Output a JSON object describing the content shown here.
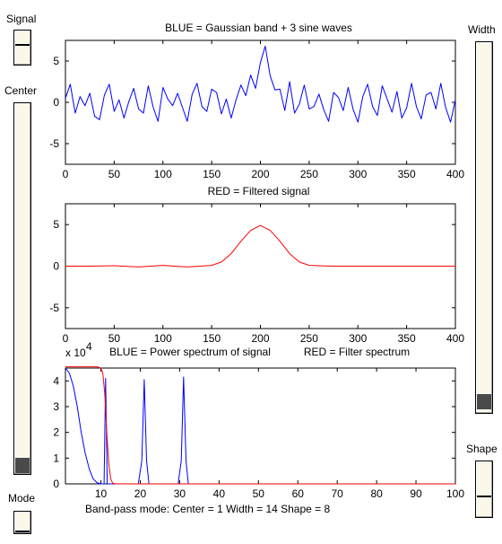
{
  "controls": {
    "signal_label": "Signal",
    "center_label": "Center",
    "mode_label": "Mode",
    "width_label": "Width",
    "shape_label": "Shape"
  },
  "sliders": {
    "signal_value": 0.5,
    "center_value": 0.0,
    "mode_value": 0.0,
    "width_value": 0.04,
    "shape_value": 0.5
  },
  "status_line": "Band-pass mode:   Center = 1    Width = 14    Shape =  8",
  "colors": {
    "signal": "#0000ff",
    "filter": "#ff0000",
    "slider_bg": "#fbf7e9",
    "thumb": "#4a4a4a"
  },
  "chart_data": [
    {
      "type": "line",
      "title": "BLUE = Gaussian band + 3 sine waves",
      "xlim": [
        0,
        400
      ],
      "ylim": [
        -7.5,
        7.5
      ],
      "xticks": [
        "0",
        "50",
        "100",
        "150",
        "200",
        "250",
        "300",
        "350",
        "400"
      ],
      "yticks": [
        "5",
        "0",
        "-5"
      ],
      "series": [
        {
          "color": "#0000ff",
          "x": [
            0,
            5,
            10,
            15,
            20,
            25,
            30,
            35,
            40,
            45,
            50,
            55,
            60,
            65,
            70,
            75,
            80,
            85,
            90,
            95,
            100,
            105,
            110,
            115,
            120,
            125,
            130,
            135,
            140,
            145,
            150,
            155,
            160,
            165,
            170,
            175,
            180,
            185,
            190,
            195,
            200,
            205,
            210,
            215,
            220,
            225,
            230,
            235,
            240,
            245,
            250,
            255,
            260,
            265,
            270,
            275,
            280,
            285,
            290,
            295,
            300,
            305,
            310,
            315,
            320,
            325,
            330,
            335,
            340,
            345,
            350,
            355,
            360,
            365,
            370,
            375,
            380,
            385,
            390,
            395,
            400
          ],
          "y": [
            0.5,
            2.2,
            -1.3,
            0.7,
            -0.4,
            1.1,
            -1.7,
            -2.1,
            0.9,
            2.2,
            -1.1,
            0.3,
            -1.9,
            0.1,
            1.7,
            -0.8,
            -1.3,
            2.0,
            -0.6,
            -2.3,
            1.8,
            0.4,
            -0.4,
            1.1,
            -0.6,
            -2.3,
            1.0,
            2.3,
            -0.5,
            -1.1,
            1.6,
            1.2,
            -1.4,
            0.4,
            -1.9,
            0.3,
            2.1,
            0.8,
            3.3,
            1.7,
            4.8,
            6.8,
            3.2,
            1.5,
            1.6,
            -1.0,
            2.5,
            -1.3,
            -0.2,
            2.1,
            -0.8,
            -0.5,
            1.0,
            -0.9,
            -2.3,
            1.2,
            0.6,
            -1.0,
            1.8,
            -0.8,
            -2.4,
            0.7,
            2.2,
            -0.5,
            -1.6,
            2.0,
            0.4,
            -1.2,
            1.3,
            -1.9,
            -0.7,
            2.3,
            -0.5,
            -2.0,
            0.9,
            1.2,
            -0.8,
            2.3,
            -0.6,
            -2.4,
            0.3
          ]
        }
      ]
    },
    {
      "type": "line",
      "title": "RED = Filtered signal",
      "xlim": [
        0,
        400
      ],
      "ylim": [
        -7.5,
        7.5
      ],
      "xticks": [
        "0",
        "50",
        "100",
        "150",
        "200",
        "250",
        "300",
        "350",
        "400"
      ],
      "yticks": [
        "5",
        "0",
        "-5"
      ],
      "series": [
        {
          "color": "#ff0000",
          "x": [
            0,
            25,
            50,
            75,
            100,
            125,
            150,
            160,
            170,
            180,
            190,
            200,
            210,
            220,
            230,
            240,
            250,
            275,
            300,
            325,
            350,
            375,
            400
          ],
          "y": [
            0,
            0,
            0.05,
            -0.1,
            0.1,
            -0.1,
            0.1,
            0.5,
            1.5,
            3.0,
            4.3,
            4.9,
            4.3,
            3.0,
            1.5,
            0.5,
            0.1,
            0,
            0,
            0,
            0,
            0,
            0
          ]
        }
      ]
    },
    {
      "type": "line",
      "title": "BLUE = Power spectrum of signal",
      "title2": "RED = Filter spectrum",
      "y_exponent_base": "x 10",
      "y_exponent_power": "4",
      "xlim": [
        1,
        100
      ],
      "ylim": [
        0,
        4.5
      ],
      "xticks": [
        "10",
        "20",
        "30",
        "40",
        "50",
        "60",
        "70",
        "80",
        "90",
        "100"
      ],
      "yticks": [
        "4",
        "3",
        "2",
        "1",
        "0"
      ],
      "series": [
        {
          "color": "#0000ff",
          "x": [
            1,
            2,
            3,
            4,
            5,
            6,
            7,
            8,
            9,
            10,
            10.8,
            11.2,
            11.6,
            12,
            13,
            14,
            19.5,
            20.4,
            21,
            21.6,
            22.2,
            23,
            29.6,
            30.4,
            31,
            31.6,
            32.2,
            33,
            100
          ],
          "y": [
            4.5,
            4.3,
            3.8,
            3.0,
            2.0,
            1.2,
            0.6,
            0.2,
            0.05,
            0,
            0,
            4.1,
            0,
            0,
            0,
            0,
            0,
            0.9,
            4.05,
            0.9,
            0,
            0,
            0,
            0.9,
            4.15,
            0.9,
            0,
            0,
            0
          ]
        },
        {
          "color": "#ff0000",
          "x": [
            1,
            2,
            4,
            6,
            8,
            9,
            10,
            10.5,
            11,
            11.5,
            12,
            12.5,
            13,
            14,
            100
          ],
          "y": [
            4.55,
            4.55,
            4.55,
            4.55,
            4.55,
            4.55,
            4.5,
            4.3,
            3.5,
            2.0,
            0.8,
            0.2,
            0.02,
            0,
            0
          ]
        }
      ]
    }
  ]
}
